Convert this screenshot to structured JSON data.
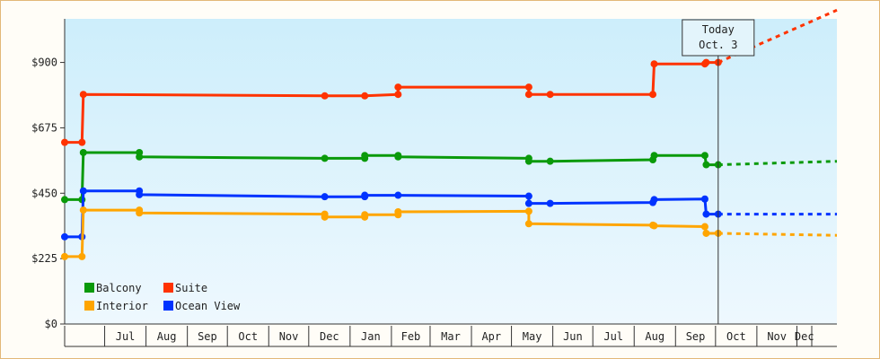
{
  "chart_data": {
    "type": "line",
    "title": "",
    "xlabel": "",
    "ylabel": "",
    "ylim": [
      0,
      1050
    ],
    "y_ticks": [
      "$0",
      "$225",
      "$450",
      "$675",
      "$900"
    ],
    "y_tick_values": [
      0,
      225,
      450,
      675,
      900
    ],
    "x_tick_labels": [
      "Jul",
      "Aug",
      "Sep",
      "Oct",
      "Nov",
      "Dec",
      "Jan",
      "Feb",
      "Mar",
      "Apr",
      "May",
      "Jun",
      "Jul",
      "Aug",
      "Sep",
      "Oct",
      "Nov",
      "Dec"
    ],
    "x_axis_start": "2023-06-01",
    "x_axis_end": "2024-12-31",
    "today": {
      "label_line1": "Today",
      "label_line2": "Oct. 3",
      "date": "2024-10-03"
    },
    "grid": false,
    "legend_placement": "bottom-left",
    "legend": [
      {
        "name": "Balcony",
        "color": "#0a9a0a"
      },
      {
        "name": "Suite",
        "color": "#ff3300"
      },
      {
        "name": "Interior",
        "color": "#ffa500"
      },
      {
        "name": "Ocean View",
        "color": "#0033ff"
      }
    ],
    "series": [
      {
        "name": "Suite",
        "color": "#ff3300",
        "points": [
          [
            "2023-06-01",
            625
          ],
          [
            "2023-06-14",
            625
          ],
          [
            "2023-06-15",
            790
          ],
          [
            "2023-12-13",
            785
          ],
          [
            "2024-01-12",
            785
          ],
          [
            "2024-02-06",
            790
          ],
          [
            "2024-02-06",
            815
          ],
          [
            "2024-05-14",
            815
          ],
          [
            "2024-05-14",
            790
          ],
          [
            "2024-05-30",
            790
          ],
          [
            "2024-08-15",
            790
          ],
          [
            "2024-08-16",
            895
          ],
          [
            "2024-09-23",
            895
          ],
          [
            "2024-09-24",
            900
          ],
          [
            "2024-10-03",
            900
          ]
        ],
        "forecast": [
          [
            "2024-10-03",
            900
          ],
          [
            "2024-12-31",
            1080
          ]
        ]
      },
      {
        "name": "Balcony",
        "color": "#0a9a0a",
        "points": [
          [
            "2023-06-01",
            428
          ],
          [
            "2023-06-14",
            428
          ],
          [
            "2023-06-15",
            590
          ],
          [
            "2023-07-27",
            590
          ],
          [
            "2023-07-27",
            575
          ],
          [
            "2023-12-13",
            570
          ],
          [
            "2024-01-12",
            570
          ],
          [
            "2024-01-12",
            580
          ],
          [
            "2024-02-06",
            580
          ],
          [
            "2024-02-06",
            575
          ],
          [
            "2024-05-14",
            570
          ],
          [
            "2024-05-14",
            560
          ],
          [
            "2024-05-30",
            560
          ],
          [
            "2024-08-15",
            565
          ],
          [
            "2024-08-16",
            580
          ],
          [
            "2024-09-23",
            580
          ],
          [
            "2024-09-24",
            548
          ],
          [
            "2024-10-03",
            548
          ]
        ],
        "forecast": [
          [
            "2024-10-03",
            548
          ],
          [
            "2024-12-31",
            560
          ]
        ]
      },
      {
        "name": "Ocean View",
        "color": "#0033ff",
        "points": [
          [
            "2023-06-01",
            300
          ],
          [
            "2023-06-14",
            300
          ],
          [
            "2023-06-15",
            458
          ],
          [
            "2023-07-27",
            458
          ],
          [
            "2023-07-27",
            445
          ],
          [
            "2023-12-13",
            438
          ],
          [
            "2024-01-12",
            438
          ],
          [
            "2024-01-12",
            443
          ],
          [
            "2024-02-06",
            443
          ],
          [
            "2024-05-14",
            440
          ],
          [
            "2024-05-14",
            415
          ],
          [
            "2024-05-30",
            415
          ],
          [
            "2024-08-15",
            418
          ],
          [
            "2024-08-16",
            428
          ],
          [
            "2024-09-23",
            430
          ],
          [
            "2024-09-24",
            378
          ],
          [
            "2024-10-03",
            378
          ]
        ],
        "forecast": [
          [
            "2024-10-03",
            378
          ],
          [
            "2024-12-31",
            378
          ]
        ]
      },
      {
        "name": "Interior",
        "color": "#ffa500",
        "points": [
          [
            "2023-06-01",
            232
          ],
          [
            "2023-06-14",
            232
          ],
          [
            "2023-06-15",
            392
          ],
          [
            "2023-07-27",
            392
          ],
          [
            "2023-07-27",
            382
          ],
          [
            "2023-12-13",
            378
          ],
          [
            "2023-12-13",
            368
          ],
          [
            "2024-01-12",
            368
          ],
          [
            "2024-01-12",
            376
          ],
          [
            "2024-02-06",
            376
          ],
          [
            "2024-02-06",
            386
          ],
          [
            "2024-05-14",
            388
          ],
          [
            "2024-05-14",
            345
          ],
          [
            "2024-08-15",
            340
          ],
          [
            "2024-08-16",
            338
          ],
          [
            "2024-09-23",
            335
          ],
          [
            "2024-09-24",
            312
          ],
          [
            "2024-10-03",
            312
          ]
        ],
        "forecast": [
          [
            "2024-10-03",
            312
          ],
          [
            "2024-12-31",
            305
          ]
        ]
      }
    ]
  }
}
